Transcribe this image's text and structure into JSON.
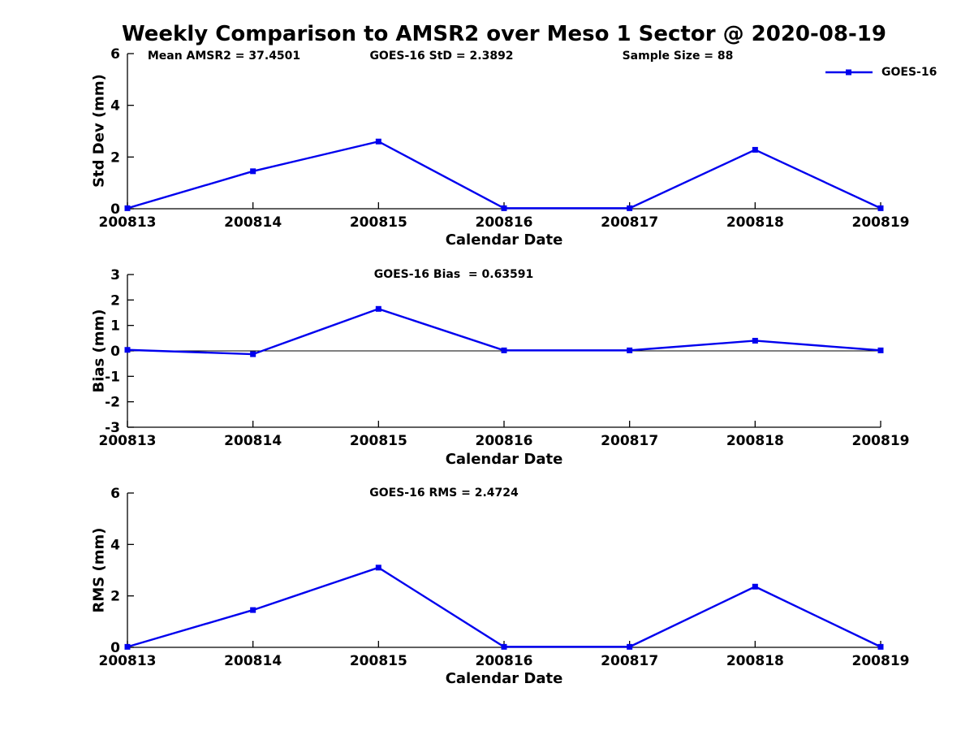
{
  "title": "Weekly Comparison to AMSR2 over Meso 1 Sector @ 2020-08-19",
  "colors": {
    "series": "#0000EE",
    "axis": "#000000",
    "text": "#000000",
    "background": "#FFFFFF"
  },
  "chart_data": [
    {
      "type": "line",
      "name": "std-dev",
      "categories": [
        "200813",
        "200814",
        "200815",
        "200816",
        "200817",
        "200818",
        "200819"
      ],
      "series": [
        {
          "name": "GOES-16",
          "color": "#0000EE",
          "marker": "square",
          "values": [
            0.02,
            1.45,
            2.6,
            0.02,
            0.02,
            2.28,
            0.02
          ]
        }
      ],
      "xlabel": "Calendar Date",
      "ylabel": "Std Dev (mm)",
      "ylim": [
        0,
        6
      ],
      "yticks": [
        0,
        2,
        4,
        6
      ],
      "grid": false,
      "legend": {
        "visible": true,
        "position": "top-right",
        "label": "GOES-16"
      },
      "annotations": [
        {
          "text": "Mean AMSR2 = 37.4501"
        },
        {
          "text": "GOES-16 StD = 2.3892"
        },
        {
          "text": "Sample Size = 88"
        }
      ]
    },
    {
      "type": "line",
      "name": "bias",
      "categories": [
        "200813",
        "200814",
        "200815",
        "200816",
        "200817",
        "200818",
        "200819"
      ],
      "series": [
        {
          "name": "GOES-16",
          "color": "#0000EE",
          "marker": "square",
          "values": [
            0.04,
            -0.13,
            1.65,
            0.02,
            0.02,
            0.4,
            0.02
          ]
        }
      ],
      "xlabel": "Calendar Date",
      "ylabel": "Bias (mm)",
      "ylim": [
        -3,
        3
      ],
      "yticks": [
        -3,
        -2,
        -1,
        0,
        1,
        2,
        3
      ],
      "zero_line": true,
      "grid": false,
      "annotations": [
        {
          "text": "GOES-16 Bias  = 0.63591"
        }
      ]
    },
    {
      "type": "line",
      "name": "rms",
      "categories": [
        "200813",
        "200814",
        "200815",
        "200816",
        "200817",
        "200818",
        "200819"
      ],
      "series": [
        {
          "name": "GOES-16",
          "color": "#0000EE",
          "marker": "square",
          "values": [
            0.02,
            1.45,
            3.1,
            0.02,
            0.02,
            2.36,
            0.02
          ]
        }
      ],
      "xlabel": "Calendar Date",
      "ylabel": "RMS (mm)",
      "ylim": [
        0,
        6
      ],
      "yticks": [
        0,
        2,
        4,
        6
      ],
      "grid": false,
      "annotations": [
        {
          "text": "GOES-16 RMS = 2.4724"
        }
      ]
    }
  ]
}
